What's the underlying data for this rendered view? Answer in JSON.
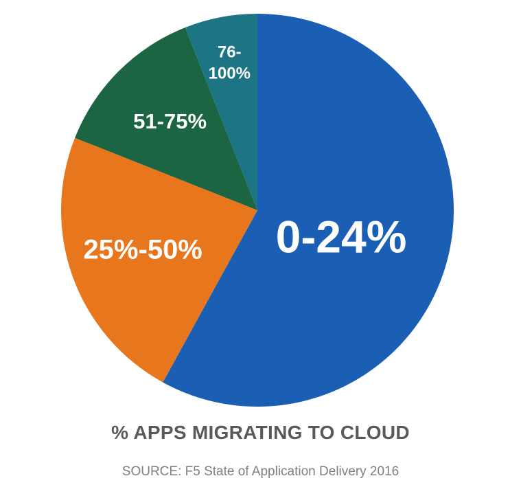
{
  "chart_data": {
    "type": "pie",
    "title": "% APPS MIGRATING TO CLOUD",
    "source": "SOURCE: F5 State of Application Delivery 2016",
    "slices": [
      {
        "label": "0-24%",
        "value": 58,
        "color": "#1a5fb4"
      },
      {
        "label": "25%-50%",
        "value": 23,
        "color": "#e8761d"
      },
      {
        "label": "51-75%",
        "value": 13,
        "color": "#1b6542"
      },
      {
        "label": "76-100%",
        "value": 6,
        "color": "#1d7484"
      }
    ]
  }
}
